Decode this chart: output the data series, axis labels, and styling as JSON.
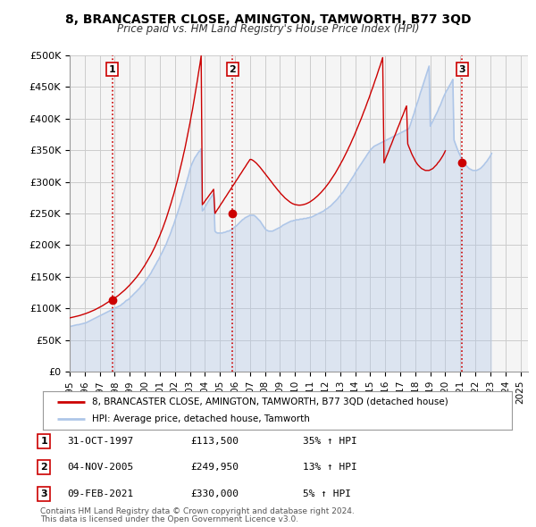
{
  "title": "8, BRANCASTER CLOSE, AMINGTON, TAMWORTH, B77 3QD",
  "subtitle": "Price paid vs. HM Land Registry's House Price Index (HPI)",
  "legend_line1": "8, BRANCASTER CLOSE, AMINGTON, TAMWORTH, B77 3QD (detached house)",
  "legend_line2": "HPI: Average price, detached house, Tamworth",
  "footer1": "Contains HM Land Registry data © Crown copyright and database right 2024.",
  "footer2": "This data is licensed under the Open Government Licence v3.0.",
  "transactions": [
    {
      "num": 1,
      "date": "31-OCT-1997",
      "price": "£113,500",
      "hpi": "35% ↑ HPI",
      "year": 1997.83
    },
    {
      "num": 2,
      "date": "04-NOV-2005",
      "price": "£249,950",
      "hpi": "13% ↑ HPI",
      "year": 2005.84
    },
    {
      "num": 3,
      "date": "09-FEB-2021",
      "price": "£330,000",
      "hpi": "5% ↑ HPI",
      "year": 2021.11
    }
  ],
  "transaction_values": [
    113500,
    249950,
    330000
  ],
  "ylim": [
    0,
    500000
  ],
  "yticks": [
    0,
    50000,
    100000,
    150000,
    200000,
    250000,
    300000,
    350000,
    400000,
    450000,
    500000
  ],
  "ytick_labels": [
    "£0",
    "£50K",
    "£100K",
    "£150K",
    "£200K",
    "£250K",
    "£300K",
    "£350K",
    "£400K",
    "£450K",
    "£500K"
  ],
  "xlim_start": 1995.0,
  "xlim_end": 2025.5,
  "xticks": [
    1995,
    1996,
    1997,
    1998,
    1999,
    2000,
    2001,
    2002,
    2003,
    2004,
    2005,
    2006,
    2007,
    2008,
    2009,
    2010,
    2011,
    2012,
    2013,
    2014,
    2015,
    2016,
    2017,
    2018,
    2019,
    2020,
    2021,
    2022,
    2023,
    2024,
    2025
  ],
  "hpi_color": "#aec6e8",
  "price_color": "#cc0000",
  "vline_color": "#cc0000",
  "grid_color": "#cccccc",
  "bg_color": "#ffffff",
  "plot_bg_color": "#f5f5f5",
  "hpi_data_x": [
    1995.0,
    1995.08,
    1995.17,
    1995.25,
    1995.33,
    1995.42,
    1995.5,
    1995.58,
    1995.67,
    1995.75,
    1995.83,
    1995.92,
    1996.0,
    1996.08,
    1996.17,
    1996.25,
    1996.33,
    1996.42,
    1996.5,
    1996.58,
    1996.67,
    1996.75,
    1996.83,
    1996.92,
    1997.0,
    1997.08,
    1997.17,
    1997.25,
    1997.33,
    1997.42,
    1997.5,
    1997.58,
    1997.67,
    1997.75,
    1997.83,
    1997.92,
    1998.0,
    1998.08,
    1998.17,
    1998.25,
    1998.33,
    1998.42,
    1998.5,
    1998.58,
    1998.67,
    1998.75,
    1998.83,
    1998.92,
    1999.0,
    1999.08,
    1999.17,
    1999.25,
    1999.33,
    1999.42,
    1999.5,
    1999.58,
    1999.67,
    1999.75,
    1999.83,
    1999.92,
    2000.0,
    2000.08,
    2000.17,
    2000.25,
    2000.33,
    2000.42,
    2000.5,
    2000.58,
    2000.67,
    2000.75,
    2000.83,
    2000.92,
    2001.0,
    2001.08,
    2001.17,
    2001.25,
    2001.33,
    2001.42,
    2001.5,
    2001.58,
    2001.67,
    2001.75,
    2001.83,
    2001.92,
    2002.0,
    2002.08,
    2002.17,
    2002.25,
    2002.33,
    2002.42,
    2002.5,
    2002.58,
    2002.67,
    2002.75,
    2002.83,
    2002.92,
    2003.0,
    2003.08,
    2003.17,
    2003.25,
    2003.33,
    2003.42,
    2003.5,
    2003.58,
    2003.67,
    2003.75,
    2003.83,
    2003.92,
    2004.0,
    2004.08,
    2004.17,
    2004.25,
    2004.33,
    2004.42,
    2004.5,
    2004.58,
    2004.67,
    2004.75,
    2004.83,
    2004.92,
    2005.0,
    2005.08,
    2005.17,
    2005.25,
    2005.33,
    2005.42,
    2005.5,
    2005.58,
    2005.67,
    2005.75,
    2005.83,
    2005.92,
    2006.0,
    2006.08,
    2006.17,
    2006.25,
    2006.33,
    2006.42,
    2006.5,
    2006.58,
    2006.67,
    2006.75,
    2006.83,
    2006.92,
    2007.0,
    2007.08,
    2007.17,
    2007.25,
    2007.33,
    2007.42,
    2007.5,
    2007.58,
    2007.67,
    2007.75,
    2007.83,
    2007.92,
    2008.0,
    2008.08,
    2008.17,
    2008.25,
    2008.33,
    2008.42,
    2008.5,
    2008.58,
    2008.67,
    2008.75,
    2008.83,
    2008.92,
    2009.0,
    2009.08,
    2009.17,
    2009.25,
    2009.33,
    2009.42,
    2009.5,
    2009.58,
    2009.67,
    2009.75,
    2009.83,
    2009.92,
    2010.0,
    2010.08,
    2010.17,
    2010.25,
    2010.33,
    2010.42,
    2010.5,
    2010.58,
    2010.67,
    2010.75,
    2010.83,
    2010.92,
    2011.0,
    2011.08,
    2011.17,
    2011.25,
    2011.33,
    2011.42,
    2011.5,
    2011.58,
    2011.67,
    2011.75,
    2011.83,
    2011.92,
    2012.0,
    2012.08,
    2012.17,
    2012.25,
    2012.33,
    2012.42,
    2012.5,
    2012.58,
    2012.67,
    2012.75,
    2012.83,
    2012.92,
    2013.0,
    2013.08,
    2013.17,
    2013.25,
    2013.33,
    2013.42,
    2013.5,
    2013.58,
    2013.67,
    2013.75,
    2013.83,
    2013.92,
    2014.0,
    2014.08,
    2014.17,
    2014.25,
    2014.33,
    2014.42,
    2014.5,
    2014.58,
    2014.67,
    2014.75,
    2014.83,
    2014.92,
    2015.0,
    2015.08,
    2015.17,
    2015.25,
    2015.33,
    2015.42,
    2015.5,
    2015.58,
    2015.67,
    2015.75,
    2015.83,
    2015.92,
    2016.0,
    2016.08,
    2016.17,
    2016.25,
    2016.33,
    2016.42,
    2016.5,
    2016.58,
    2016.67,
    2016.75,
    2016.83,
    2016.92,
    2017.0,
    2017.08,
    2017.17,
    2017.25,
    2017.33,
    2017.42,
    2017.5,
    2017.58,
    2017.67,
    2017.75,
    2017.83,
    2017.92,
    2018.0,
    2018.08,
    2018.17,
    2018.25,
    2018.33,
    2018.42,
    2018.5,
    2018.58,
    2018.67,
    2018.75,
    2018.83,
    2018.92,
    2019.0,
    2019.08,
    2019.17,
    2019.25,
    2019.33,
    2019.42,
    2019.5,
    2019.58,
    2019.67,
    2019.75,
    2019.83,
    2019.92,
    2020.0,
    2020.08,
    2020.17,
    2020.25,
    2020.33,
    2020.42,
    2020.5,
    2020.58,
    2020.67,
    2020.75,
    2020.83,
    2020.92,
    2021.0,
    2021.08,
    2021.17,
    2021.25,
    2021.33,
    2021.42,
    2021.5,
    2021.58,
    2021.67,
    2021.75,
    2021.83,
    2021.92,
    2022.0,
    2022.08,
    2022.17,
    2022.25,
    2022.33,
    2022.42,
    2022.5,
    2022.58,
    2022.67,
    2022.75,
    2022.83,
    2022.92,
    2023.0,
    2023.08,
    2023.17,
    2023.25,
    2023.33,
    2023.42,
    2023.5,
    2023.58,
    2023.67,
    2023.75,
    2023.83,
    2023.92,
    2024.0,
    2024.08,
    2024.17,
    2024.25
  ],
  "hpi_data_y": [
    71000,
    71500,
    72000,
    72500,
    73000,
    73500,
    74000,
    74000,
    74500,
    75000,
    75500,
    76000,
    76500,
    77000,
    78000,
    79000,
    80000,
    81000,
    82000,
    83000,
    84000,
    85000,
    86000,
    87000,
    88000,
    89000,
    90000,
    91000,
    92000,
    93000,
    94000,
    95000,
    96000,
    97000,
    98000,
    99000,
    100000,
    101000,
    102000,
    103000,
    104000,
    105000,
    107000,
    108000,
    110000,
    112000,
    113000,
    114000,
    116000,
    118000,
    120000,
    122000,
    124000,
    126000,
    128000,
    130000,
    132000,
    135000,
    137000,
    139000,
    142000,
    144000,
    147000,
    150000,
    153000,
    156000,
    160000,
    163000,
    167000,
    170000,
    174000,
    177000,
    181000,
    185000,
    189000,
    193000,
    197000,
    201000,
    206000,
    211000,
    216000,
    221000,
    227000,
    232000,
    238000,
    244000,
    250000,
    256000,
    262000,
    269000,
    276000,
    283000,
    290000,
    297000,
    304000,
    311000,
    319000,
    325000,
    330000,
    334000,
    338000,
    341000,
    344000,
    347000,
    349000,
    352000,
    254000,
    256000,
    260000,
    263000,
    267000,
    270000,
    273000,
    276000,
    279000,
    282000,
    222000,
    220000,
    219000,
    219000,
    219000,
    219000,
    219000,
    220000,
    220000,
    221000,
    222000,
    222000,
    223000,
    224000,
    225000,
    227000,
    229000,
    230000,
    232000,
    234000,
    236000,
    238000,
    240000,
    241000,
    243000,
    244000,
    245000,
    246000,
    247000,
    247000,
    247000,
    247000,
    246000,
    244000,
    242000,
    240000,
    238000,
    235000,
    232000,
    229000,
    226000,
    224000,
    223000,
    222000,
    222000,
    222000,
    222000,
    223000,
    224000,
    225000,
    226000,
    227000,
    228000,
    229000,
    231000,
    232000,
    233000,
    234000,
    235000,
    236000,
    237000,
    238000,
    238000,
    239000,
    239000,
    240000,
    240000,
    240000,
    241000,
    241000,
    241000,
    242000,
    242000,
    242000,
    243000,
    243000,
    244000,
    244000,
    245000,
    246000,
    247000,
    248000,
    249000,
    250000,
    251000,
    252000,
    253000,
    254000,
    256000,
    257000,
    258000,
    260000,
    261000,
    263000,
    265000,
    267000,
    269000,
    271000,
    273000,
    276000,
    278000,
    281000,
    283000,
    286000,
    289000,
    292000,
    295000,
    298000,
    301000,
    304000,
    307000,
    310000,
    314000,
    317000,
    320000,
    323000,
    326000,
    329000,
    332000,
    335000,
    338000,
    341000,
    344000,
    347000,
    350000,
    352000,
    354000,
    356000,
    357000,
    358000,
    359000,
    360000,
    361000,
    362000,
    363000,
    364000,
    365000,
    366000,
    367000,
    368000,
    369000,
    370000,
    371000,
    372000,
    373000,
    374000,
    375000,
    376000,
    377000,
    378000,
    379000,
    380000,
    381000,
    382000,
    383000,
    384000,
    390000,
    396000,
    402000,
    408000,
    415000,
    421000,
    427000,
    433000,
    440000,
    446000,
    452000,
    458000,
    465000,
    471000,
    477000,
    483000,
    388000,
    392000,
    396000,
    400000,
    404000,
    408000,
    412000,
    417000,
    421000,
    426000,
    431000,
    436000,
    440000,
    444000,
    447000,
    451000,
    454000,
    458000,
    462000,
    366000,
    360000,
    355000,
    350000,
    345000,
    341000,
    337000,
    333000,
    330000,
    327000,
    325000,
    323000,
    321000,
    320000,
    319000,
    318000,
    318000,
    318000,
    318000,
    319000,
    320000,
    321000,
    323000,
    325000,
    327000,
    330000,
    332000,
    335000,
    338000,
    341000,
    345000
  ],
  "price_line_x": [
    1995.0,
    1995.08,
    1995.17,
    1995.25,
    1995.33,
    1995.42,
    1995.5,
    1995.58,
    1995.67,
    1995.75,
    1995.83,
    1995.92,
    1996.0,
    1996.08,
    1996.17,
    1996.25,
    1996.33,
    1996.42,
    1996.5,
    1996.58,
    1996.67,
    1996.75,
    1996.83,
    1996.92,
    1997.0,
    1997.08,
    1997.17,
    1997.25,
    1997.33,
    1997.42,
    1997.5,
    1997.58,
    1997.67,
    1997.75,
    1997.83,
    1997.92,
    1998.0,
    1998.08,
    1998.17,
    1998.25,
    1998.33,
    1998.42,
    1998.5,
    1998.58,
    1998.67,
    1998.75,
    1998.83,
    1998.92,
    1999.0,
    1999.08,
    1999.17,
    1999.25,
    1999.33,
    1999.42,
    1999.5,
    1999.58,
    1999.67,
    1999.75,
    1999.83,
    1999.92,
    2000.0,
    2000.08,
    2000.17,
    2000.25,
    2000.33,
    2000.42,
    2000.5,
    2000.58,
    2000.67,
    2000.75,
    2000.83,
    2000.92,
    2001.0,
    2001.08,
    2001.17,
    2001.25,
    2001.33,
    2001.42,
    2001.5,
    2001.58,
    2001.67,
    2001.75,
    2001.83,
    2001.92,
    2002.0,
    2002.08,
    2002.17,
    2002.25,
    2002.33,
    2002.42,
    2002.5,
    2002.58,
    2002.67,
    2002.75,
    2002.83,
    2002.92,
    2003.0,
    2003.08,
    2003.17,
    2003.25,
    2003.33,
    2003.42,
    2003.5,
    2003.58,
    2003.67,
    2003.75,
    2003.83,
    2003.92,
    2004.0,
    2004.08,
    2004.17,
    2004.25,
    2004.33,
    2004.42,
    2004.5,
    2004.58,
    2004.67,
    2004.75,
    2004.83,
    2004.92,
    2005.0,
    2005.08,
    2005.17,
    2005.25,
    2005.33,
    2005.42,
    2005.5,
    2005.58,
    2005.67,
    2005.75,
    2005.83,
    2005.92,
    2006.0,
    2006.08,
    2006.17,
    2006.25,
    2006.33,
    2006.42,
    2006.5,
    2006.58,
    2006.67,
    2006.75,
    2006.83,
    2006.92,
    2007.0,
    2007.08,
    2007.17,
    2007.25,
    2007.33,
    2007.42,
    2007.5,
    2007.58,
    2007.67,
    2007.75,
    2007.83,
    2007.92,
    2008.0,
    2008.08,
    2008.17,
    2008.25,
    2008.33,
    2008.42,
    2008.5,
    2008.58,
    2008.67,
    2008.75,
    2008.83,
    2008.92,
    2009.0,
    2009.08,
    2009.17,
    2009.25,
    2009.33,
    2009.42,
    2009.5,
    2009.58,
    2009.67,
    2009.75,
    2009.83,
    2009.92,
    2010.0,
    2010.08,
    2010.17,
    2010.25,
    2010.33,
    2010.42,
    2010.5,
    2010.58,
    2010.67,
    2010.75,
    2010.83,
    2010.92,
    2011.0,
    2011.08,
    2011.17,
    2011.25,
    2011.33,
    2011.42,
    2011.5,
    2011.58,
    2011.67,
    2011.75,
    2011.83,
    2011.92,
    2012.0,
    2012.08,
    2012.17,
    2012.25,
    2012.33,
    2012.42,
    2012.5,
    2012.58,
    2012.67,
    2012.75,
    2012.83,
    2012.92,
    2013.0,
    2013.08,
    2013.17,
    2013.25,
    2013.33,
    2013.42,
    2013.5,
    2013.58,
    2013.67,
    2013.75,
    2013.83,
    2013.92,
    2014.0,
    2014.08,
    2014.17,
    2014.25,
    2014.33,
    2014.42,
    2014.5,
    2014.58,
    2014.67,
    2014.75,
    2014.83,
    2014.92,
    2015.0,
    2015.08,
    2015.17,
    2015.25,
    2015.33,
    2015.42,
    2015.5,
    2015.58,
    2015.67,
    2015.75,
    2015.83,
    2015.92,
    2016.0,
    2016.08,
    2016.17,
    2016.25,
    2016.33,
    2016.42,
    2016.5,
    2016.58,
    2016.67,
    2016.75,
    2016.83,
    2016.92,
    2017.0,
    2017.08,
    2017.17,
    2017.25,
    2017.33,
    2017.42,
    2017.5,
    2017.58,
    2017.67,
    2017.75,
    2017.83,
    2017.92,
    2018.0,
    2018.08,
    2018.17,
    2018.25,
    2018.33,
    2018.42,
    2018.5,
    2018.58,
    2018.67,
    2018.75,
    2018.83,
    2018.92,
    2019.0,
    2019.08,
    2019.17,
    2019.25,
    2019.33,
    2019.42,
    2019.5,
    2019.58,
    2019.67,
    2019.75,
    2019.83,
    2019.92,
    2020.0,
    2020.08,
    2020.17,
    2020.25,
    2020.33,
    2020.42,
    2020.5,
    2020.58,
    2020.67,
    2020.75,
    2020.83,
    2020.92,
    2021.0,
    2021.08,
    2021.17,
    2021.25,
    2021.33,
    2021.42,
    2021.5,
    2021.58,
    2021.67,
    2021.75,
    2021.83,
    2021.92,
    2022.0,
    2022.08,
    2022.17,
    2022.25,
    2022.33,
    2022.42,
    2022.5,
    2022.58,
    2022.67,
    2022.75,
    2022.83,
    2022.92,
    2023.0,
    2023.08,
    2023.17,
    2023.25,
    2023.33,
    2023.42,
    2023.5,
    2023.58,
    2023.67,
    2023.75,
    2023.83,
    2023.92,
    2024.0,
    2024.08,
    2024.17,
    2024.25
  ],
  "price_line_y": [
    84800,
    85200,
    85700,
    86100,
    86600,
    87100,
    87600,
    88100,
    88600,
    89200,
    89800,
    90500,
    91100,
    91800,
    92600,
    93300,
    94100,
    95000,
    95800,
    96700,
    97600,
    98600,
    99600,
    100600,
    101700,
    102800,
    103900,
    105100,
    106300,
    107500,
    108800,
    110100,
    111500,
    112900,
    113500,
    114800,
    116100,
    117500,
    119000,
    120500,
    122100,
    123700,
    125400,
    127200,
    129000,
    130900,
    132800,
    134800,
    136900,
    139000,
    141200,
    143500,
    145900,
    148300,
    150800,
    153400,
    156100,
    158900,
    161800,
    164800,
    167900,
    171100,
    174400,
    177900,
    181400,
    185100,
    188900,
    192900,
    197000,
    201300,
    205700,
    210300,
    215100,
    220100,
    225200,
    230500,
    236000,
    241700,
    247600,
    253700,
    260000,
    266500,
    273200,
    280100,
    287200,
    294600,
    302200,
    310000,
    318100,
    326400,
    335000,
    343800,
    352900,
    362300,
    372000,
    382000,
    392300,
    402900,
    413800,
    425000,
    436500,
    448400,
    460600,
    473200,
    486100,
    499300,
    263900,
    266600,
    269300,
    272000,
    274700,
    277400,
    280100,
    282800,
    285500,
    288200,
    249950,
    253000,
    256050,
    259100,
    262150,
    265200,
    268250,
    271300,
    274350,
    277400,
    280450,
    283500,
    286550,
    289600,
    292650,
    295700,
    298750,
    301800,
    304850,
    307900,
    310950,
    314000,
    317050,
    320100,
    323150,
    326200,
    329250,
    332300,
    335350,
    335350,
    334300,
    333000,
    331400,
    329600,
    327500,
    325300,
    323000,
    320600,
    318100,
    315600,
    313100,
    310600,
    308000,
    305400,
    302800,
    300200,
    297600,
    295000,
    292500,
    290000,
    287600,
    285200,
    282900,
    280600,
    278500,
    276400,
    274400,
    272600,
    270800,
    269200,
    267800,
    266600,
    265500,
    264700,
    264000,
    263600,
    263300,
    263100,
    263100,
    263300,
    263600,
    264100,
    264700,
    265400,
    266300,
    267300,
    268400,
    269700,
    271100,
    272600,
    274200,
    275900,
    277700,
    279600,
    281600,
    283700,
    285900,
    288200,
    290600,
    293100,
    295700,
    298400,
    301200,
    304100,
    307100,
    310200,
    313400,
    316700,
    320100,
    323600,
    327200,
    330800,
    334500,
    338300,
    342200,
    346200,
    350300,
    354500,
    358800,
    363200,
    367600,
    372100,
    376700,
    381400,
    386200,
    391100,
    396000,
    401000,
    406100,
    411200,
    416400,
    421700,
    427000,
    432400,
    437900,
    443500,
    449100,
    454800,
    460600,
    466400,
    472300,
    478300,
    484300,
    490400,
    496500,
    330000,
    335000,
    340000,
    345000,
    350000,
    355000,
    360000,
    365000,
    370000,
    375000,
    380000,
    385000,
    390000,
    395000,
    400000,
    405000,
    410000,
    415000,
    420000,
    360000,
    355000,
    350000,
    345000,
    341000,
    337000,
    333000,
    330000,
    327000,
    325000,
    323000,
    321000,
    320000,
    319000,
    318000,
    318000,
    318000,
    318000,
    319000,
    320000,
    321000,
    323000,
    325000,
    327000,
    330000,
    332000,
    335000,
    338000,
    341000,
    345000,
    349000
  ]
}
